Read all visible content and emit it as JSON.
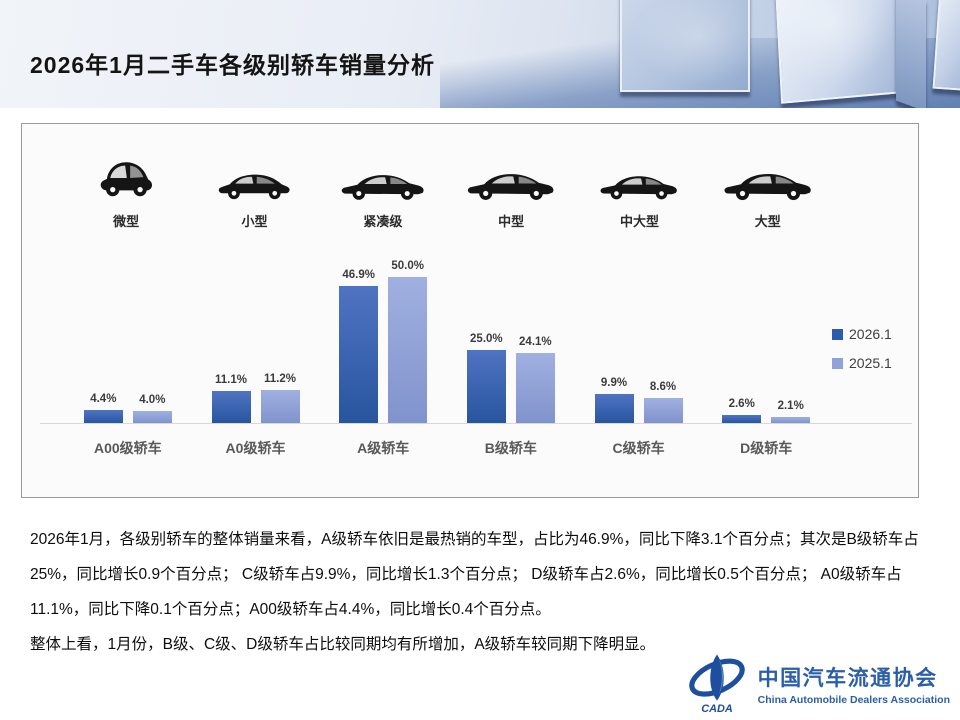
{
  "header": {
    "title": "2026年1月二手车各级别轿车销量分析"
  },
  "vehicle_classes": [
    {
      "label": "微型",
      "icon": "micro-car-icon"
    },
    {
      "label": "小型",
      "icon": "small-car-icon"
    },
    {
      "label": "紧凑级",
      "icon": "compact-car-icon"
    },
    {
      "label": "中型",
      "icon": "mid-car-icon"
    },
    {
      "label": "中大型",
      "icon": "mid-large-car-icon"
    },
    {
      "label": "大型",
      "icon": "large-car-icon"
    }
  ],
  "chart_data": {
    "type": "bar",
    "categories": [
      "A00级轿车",
      "A0级轿车",
      "A级轿车",
      "B级轿车",
      "C级轿车",
      "D级轿车"
    ],
    "series": [
      {
        "name": "2026.1",
        "color": "#2e5cac",
        "gradient": [
          "#4f74c1",
          "#28559f"
        ],
        "values": [
          4.4,
          11.1,
          46.9,
          25.0,
          9.9,
          2.6
        ]
      },
      {
        "name": "2025.1",
        "color": "#8fa3d9",
        "gradient": [
          "#a0b0e0",
          "#8093cc"
        ],
        "values": [
          4.0,
          11.2,
          50.0,
          24.1,
          8.6,
          2.1
        ]
      }
    ],
    "value_suffix": "%",
    "ylim": [
      0,
      50
    ],
    "grid": false,
    "legend_position": "right",
    "data_labels": true
  },
  "analysis": {
    "paragraph1": "2026年1月，各级别轿车的整体销量来看，A级轿车依旧是最热销的车型，占比为46.9%，同比下降3.1个百分点；其次是B级轿车占25%，同比增长0.9个百分点； C级轿车占9.9%，同比增长1.3个百分点； D级轿车占2.6%，同比增长0.5个百分点； A0级轿车占11.1%，同比下降0.1个百分点；A00级轿车占4.4%，同比增长0.4个百分点。",
    "paragraph2": "整体上看，1月份，B级、C级、D级轿车占比较同期均有所增加，A级轿车较同期下降明显。"
  },
  "logo": {
    "acronym": "CADA",
    "name_cn": "中国汽车流通协会",
    "name_en": "China Automobile Dealers Association"
  }
}
